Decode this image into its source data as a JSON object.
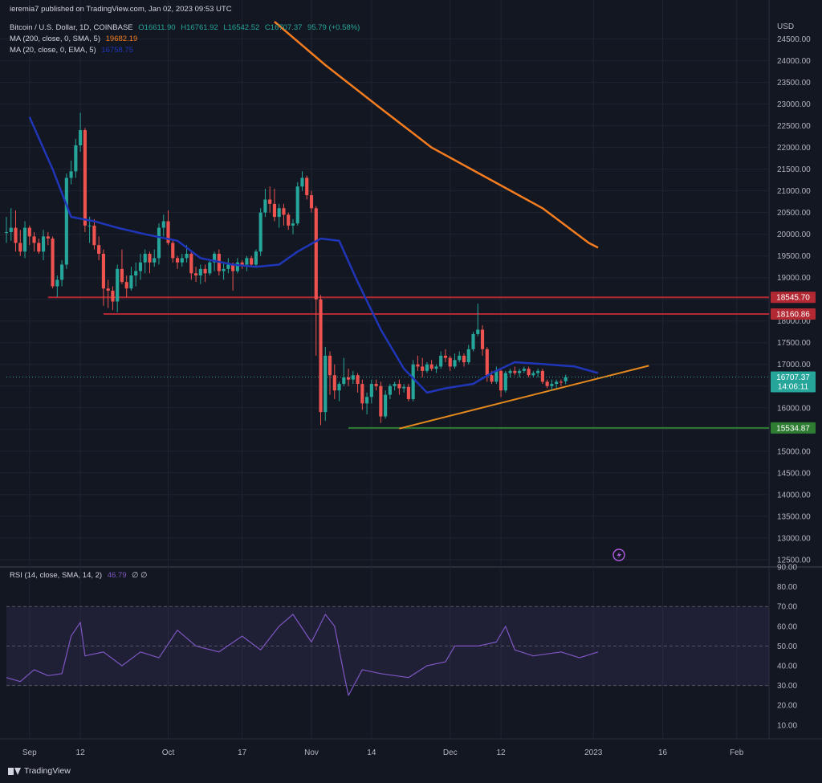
{
  "published": "ieremia7 published on TradingView.com, Jan 02, 2023 09:53 UTC",
  "brand": "TradingView",
  "colors": {
    "up": "#26a69a",
    "down": "#ef5350",
    "ema20": "#2036b8",
    "ma200": "#f57c1f",
    "rsi": "#7e57c2",
    "resistance": "#b22833",
    "support": "#2e7d32",
    "trend": "#e68a1e"
  },
  "chart_data": [
    {
      "type": "candlestick",
      "title": "Bitcoin / U.S. Dollar, 1D, COINBASE",
      "ohlc_header": {
        "o": "O16611.90",
        "h": "H16761.92",
        "l": "L16542.52",
        "c": "C16707.37",
        "chg": "95.79 (+0.58%)"
      },
      "indicators": [
        {
          "label": "MA (200, close, 0, SMA, 5)",
          "value": "19682.19",
          "color": "#f57c1f",
          "x": [
            "2022-10-24",
            "2022-11-04",
            "2022-11-16",
            "2022-11-27",
            "2022-12-09",
            "2022-12-21",
            "2022-12-31",
            "2023-01-02"
          ],
          "values": [
            24900,
            23900,
            22900,
            22000,
            21300,
            20600,
            19800,
            19690
          ]
        },
        {
          "label": "MA (20, close, 0, EMA, 5)",
          "value": "16758.75",
          "color": "#2036b8",
          "x": [
            "2022-09-01",
            "2022-09-06",
            "2022-09-10",
            "2022-09-15",
            "2022-09-20",
            "2022-09-26",
            "2022-10-03",
            "2022-10-08",
            "2022-10-15",
            "2022-10-20",
            "2022-10-25",
            "2022-10-29",
            "2022-11-03",
            "2022-11-07",
            "2022-11-11",
            "2022-11-16",
            "2022-11-21",
            "2022-11-26",
            "2022-11-30",
            "2022-12-06",
            "2022-12-10",
            "2022-12-15",
            "2022-12-22",
            "2022-12-28",
            "2023-01-02"
          ],
          "values": [
            22700,
            21500,
            20400,
            20300,
            20150,
            20000,
            19850,
            19450,
            19300,
            19250,
            19300,
            19600,
            19900,
            19850,
            18900,
            17800,
            16900,
            16350,
            16450,
            16550,
            16800,
            17050,
            17000,
            16950,
            16800
          ]
        }
      ],
      "axis_label": "USD",
      "y_ticks": [
        12500,
        13000,
        13500,
        14000,
        14500,
        15000,
        15500,
        16000,
        16500,
        17000,
        17500,
        18000,
        18500,
        19000,
        19500,
        20000,
        20500,
        21000,
        21500,
        22000,
        22500,
        23000,
        23500,
        24000,
        24500
      ],
      "ylim": [
        12330,
        25400
      ],
      "x_start": "2022-08-27",
      "x_end": "2023-02-08",
      "x_ticks": [
        {
          "label": "Sep",
          "date": "2022-09-01"
        },
        {
          "label": "12",
          "date": "2022-09-12"
        },
        {
          "label": "Oct",
          "date": "2022-10-01"
        },
        {
          "label": "17",
          "date": "2022-10-17"
        },
        {
          "label": "Nov",
          "date": "2022-11-01"
        },
        {
          "label": "14",
          "date": "2022-11-14"
        },
        {
          "label": "Dec",
          "date": "2022-12-01"
        },
        {
          "label": "12",
          "date": "2022-12-12"
        },
        {
          "label": "2023",
          "date": "2023-01-01"
        },
        {
          "label": "16",
          "date": "2023-01-16"
        },
        {
          "label": "Feb",
          "date": "2023-02-01"
        }
      ],
      "price_labels": [
        {
          "value": 18545.7,
          "text": "18545.70",
          "color": "#b22833"
        },
        {
          "value": 18160.86,
          "text": "18160.86",
          "color": "#b22833"
        },
        {
          "value": 16707.37,
          "text": "16707.37",
          "countdown": "14:06:11",
          "color": "#26a69a"
        },
        {
          "value": 15534.87,
          "text": "15534.87",
          "color": "#2e7d32"
        }
      ],
      "lines": [
        {
          "kind": "horizontal",
          "value": 18545.7,
          "from": "2022-09-05",
          "to": "2023-02-08",
          "color": "#b22833"
        },
        {
          "kind": "horizontal",
          "value": 18160.86,
          "from": "2022-09-17",
          "to": "2023-02-08",
          "color": "#b22833"
        },
        {
          "kind": "horizontal",
          "value": 15534.87,
          "from": "2022-11-09",
          "to": "2023-02-08",
          "color": "#2e7d32"
        },
        {
          "kind": "trend",
          "from": [
            "2022-11-20",
            15520
          ],
          "to": [
            "2023-01-13",
            16970
          ],
          "color": "#e68a1e"
        }
      ],
      "candles": {
        "start": "2022-08-27",
        "data": [
          [
            20030,
            20400,
            19800,
            20050
          ],
          [
            20050,
            20600,
            19850,
            20150
          ],
          [
            20150,
            20550,
            19600,
            19800
          ],
          [
            19800,
            20100,
            19500,
            19600
          ],
          [
            19600,
            20300,
            19450,
            20150
          ],
          [
            20150,
            20200,
            19750,
            19950
          ],
          [
            19950,
            20050,
            19600,
            19800
          ],
          [
            19800,
            19900,
            19550,
            19600
          ],
          [
            19600,
            20100,
            19400,
            19950
          ],
          [
            19950,
            20050,
            19750,
            19900
          ],
          [
            19900,
            19950,
            18750,
            18800
          ],
          [
            18800,
            19050,
            18550,
            18950
          ],
          [
            18950,
            19400,
            18800,
            19300
          ],
          [
            19300,
            21400,
            19200,
            21300
          ],
          [
            21300,
            21700,
            21150,
            21450
          ],
          [
            21450,
            22200,
            21300,
            22050
          ],
          [
            22050,
            22800,
            21900,
            22400
          ],
          [
            22400,
            22450,
            20050,
            20200
          ],
          [
            20200,
            20400,
            19800,
            20200
          ],
          [
            20200,
            20350,
            19650,
            19750
          ],
          [
            19750,
            19950,
            19400,
            19550
          ],
          [
            19550,
            19650,
            18350,
            18750
          ],
          [
            18750,
            18950,
            18300,
            18700
          ],
          [
            18700,
            18800,
            18250,
            18450
          ],
          [
            18450,
            19300,
            18200,
            19200
          ],
          [
            19200,
            19650,
            18850,
            18900
          ],
          [
            18900,
            19050,
            18550,
            18750
          ],
          [
            18750,
            19250,
            18700,
            19050
          ],
          [
            19050,
            19350,
            18800,
            19150
          ],
          [
            19150,
            19550,
            18950,
            19350
          ],
          [
            19350,
            19650,
            19100,
            19550
          ],
          [
            19550,
            19600,
            19100,
            19350
          ],
          [
            19350,
            19650,
            19250,
            19450
          ],
          [
            19450,
            20250,
            19300,
            20150
          ],
          [
            20150,
            20450,
            19950,
            20300
          ],
          [
            20300,
            20550,
            19750,
            19800
          ],
          [
            19800,
            19850,
            19350,
            19450
          ],
          [
            19450,
            19500,
            19200,
            19350
          ],
          [
            19350,
            19550,
            19250,
            19450
          ],
          [
            19450,
            19750,
            19350,
            19550
          ],
          [
            19550,
            19600,
            18950,
            19100
          ],
          [
            19100,
            19250,
            18900,
            19050
          ],
          [
            19050,
            19300,
            18850,
            19200
          ],
          [
            19200,
            19300,
            18900,
            19100
          ],
          [
            19100,
            19400,
            19050,
            19350
          ],
          [
            19350,
            19600,
            19150,
            19550
          ],
          [
            19550,
            19650,
            19050,
            19150
          ],
          [
            19150,
            19350,
            18950,
            19200
          ],
          [
            19200,
            19450,
            19100,
            19300
          ],
          [
            19300,
            19350,
            18700,
            19150
          ],
          [
            19150,
            19450,
            19100,
            19350
          ],
          [
            19350,
            19400,
            19200,
            19300
          ],
          [
            19300,
            19500,
            19150,
            19450
          ],
          [
            19450,
            19500,
            19250,
            19300
          ],
          [
            19300,
            19650,
            19250,
            19600
          ],
          [
            19600,
            20600,
            19500,
            20500
          ],
          [
            20500,
            21050,
            20400,
            20800
          ],
          [
            20800,
            21100,
            20500,
            20700
          ],
          [
            20700,
            21050,
            20300,
            20400
          ],
          [
            20400,
            20700,
            20150,
            20600
          ],
          [
            20600,
            20700,
            20200,
            20450
          ],
          [
            20450,
            20500,
            20100,
            20200
          ],
          [
            20200,
            20350,
            20000,
            20250
          ],
          [
            20250,
            21200,
            20200,
            21100
          ],
          [
            21100,
            21450,
            21000,
            21300
          ],
          [
            21300,
            21350,
            20800,
            20900
          ],
          [
            20900,
            21000,
            20500,
            20600
          ],
          [
            20600,
            20650,
            17200,
            18500
          ],
          [
            18500,
            18600,
            15600,
            15900
          ],
          [
            15900,
            17400,
            15700,
            17200
          ],
          [
            17200,
            17300,
            16300,
            16750
          ],
          [
            16750,
            17000,
            16200,
            16400
          ],
          [
            16400,
            16600,
            16150,
            16550
          ],
          [
            16550,
            17150,
            16500,
            16700
          ],
          [
            16700,
            16900,
            16500,
            16650
          ],
          [
            16650,
            16850,
            16550,
            16750
          ],
          [
            16750,
            16800,
            16350,
            16550
          ],
          [
            16550,
            16650,
            15950,
            16100
          ],
          [
            16100,
            16350,
            15850,
            16250
          ],
          [
            16250,
            16650,
            16100,
            16550
          ],
          [
            16550,
            16650,
            16400,
            16500
          ],
          [
            16500,
            16600,
            15650,
            15800
          ],
          [
            15800,
            16400,
            15750,
            16300
          ],
          [
            16300,
            16550,
            16200,
            16500
          ],
          [
            16500,
            16600,
            16400,
            16550
          ],
          [
            16550,
            16650,
            16300,
            16450
          ],
          [
            16450,
            16550,
            16350,
            16480
          ],
          [
            16480,
            16550,
            16150,
            16200
          ],
          [
            16200,
            17100,
            16150,
            17000
          ],
          [
            17000,
            17200,
            16850,
            16950
          ],
          [
            16950,
            17150,
            16700,
            16850
          ],
          [
            16850,
            17050,
            16800,
            17000
          ],
          [
            17000,
            17100,
            16850,
            16900
          ],
          [
            16900,
            17000,
            16800,
            16950
          ],
          [
            16950,
            17300,
            16900,
            17200
          ],
          [
            17200,
            17350,
            17050,
            17150
          ],
          [
            17150,
            17200,
            16850,
            16950
          ],
          [
            16950,
            17250,
            16900,
            17100
          ],
          [
            17100,
            17300,
            17050,
            17200
          ],
          [
            17200,
            17250,
            16950,
            17050
          ],
          [
            17050,
            17450,
            17000,
            17350
          ],
          [
            17350,
            17750,
            17300,
            17700
          ],
          [
            17700,
            18400,
            17650,
            17800
          ],
          [
            17800,
            17900,
            17200,
            17350
          ],
          [
            17350,
            17400,
            16600,
            16750
          ],
          [
            16750,
            16850,
            16550,
            16600
          ],
          [
            16600,
            16950,
            16550,
            16850
          ],
          [
            16850,
            16900,
            16250,
            16400
          ],
          [
            16400,
            16850,
            16350,
            16800
          ],
          [
            16800,
            16900,
            16700,
            16850
          ],
          [
            16850,
            16950,
            16750,
            16800
          ],
          [
            16800,
            16900,
            16700,
            16850
          ],
          [
            16850,
            16950,
            16800,
            16900
          ],
          [
            16900,
            16950,
            16700,
            16750
          ],
          [
            16750,
            16850,
            16700,
            16800
          ],
          [
            16800,
            16900,
            16700,
            16850
          ],
          [
            16850,
            16900,
            16550,
            16600
          ],
          [
            16600,
            16650,
            16450,
            16500
          ],
          [
            16500,
            16650,
            16400,
            16550
          ],
          [
            16550,
            16650,
            16450,
            16600
          ],
          [
            16600,
            16650,
            16500,
            16580
          ],
          [
            16611.9,
            16761.92,
            16542.52,
            16707.37
          ]
        ]
      }
    },
    {
      "type": "line",
      "title": "RSI (14, close, SMA, 14, 2)",
      "value": "46.79",
      "extras": "∅ ∅",
      "color": "#7e57c2",
      "y_ticks": [
        10,
        20,
        30,
        40,
        50,
        60,
        70,
        80,
        90
      ],
      "ylim": [
        3,
        90
      ],
      "band": [
        30,
        70
      ],
      "mid": 50,
      "x": [
        "2022-08-27",
        "2022-08-30",
        "2022-09-02",
        "2022-09-05",
        "2022-09-08",
        "2022-09-10",
        "2022-09-12",
        "2022-09-13",
        "2022-09-17",
        "2022-09-21",
        "2022-09-25",
        "2022-09-29",
        "2022-10-03",
        "2022-10-07",
        "2022-10-12",
        "2022-10-17",
        "2022-10-21",
        "2022-10-25",
        "2022-10-28",
        "2022-11-01",
        "2022-11-04",
        "2022-11-06",
        "2022-11-08",
        "2022-11-09",
        "2022-11-12",
        "2022-11-16",
        "2022-11-22",
        "2022-11-26",
        "2022-11-30",
        "2022-12-02",
        "2022-12-07",
        "2022-12-11",
        "2022-12-13",
        "2022-12-15",
        "2022-12-19",
        "2022-12-25",
        "2022-12-29",
        "2023-01-02"
      ],
      "values": [
        34,
        32,
        38,
        35,
        36,
        55,
        62,
        45,
        47,
        40,
        47,
        44,
        58,
        50,
        47,
        55,
        48,
        60,
        66,
        52,
        66,
        60,
        36,
        25,
        38,
        36,
        34,
        40,
        42,
        50,
        50,
        52,
        60,
        48,
        45,
        47,
        44,
        47
      ]
    }
  ]
}
